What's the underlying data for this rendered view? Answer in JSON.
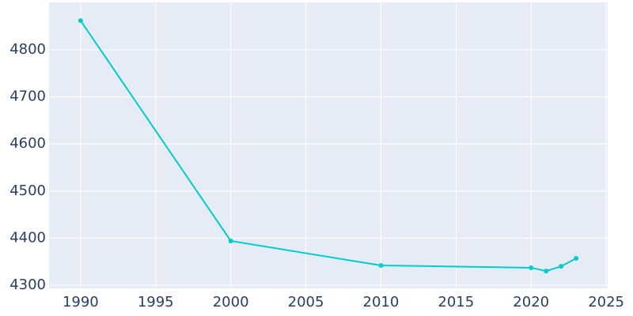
{
  "chart_data": {
    "type": "line",
    "x": [
      1990,
      2000,
      2010,
      2020,
      2021,
      2022,
      2023
    ],
    "series": [
      {
        "color": "#00cccc",
        "values": [
          4862,
          4394,
          4342,
          4337,
          4330,
          4340,
          4357
        ]
      }
    ],
    "xlim": [
      1987.9,
      2025.1
    ],
    "xticks": [
      1990,
      1995,
      2000,
      2005,
      2010,
      2015,
      2020,
      2025
    ],
    "ylim": [
      4293.3,
      4900.7
    ],
    "yticks": [
      4300,
      4400,
      4500,
      4600,
      4700,
      4800
    ],
    "grid": true
  }
}
